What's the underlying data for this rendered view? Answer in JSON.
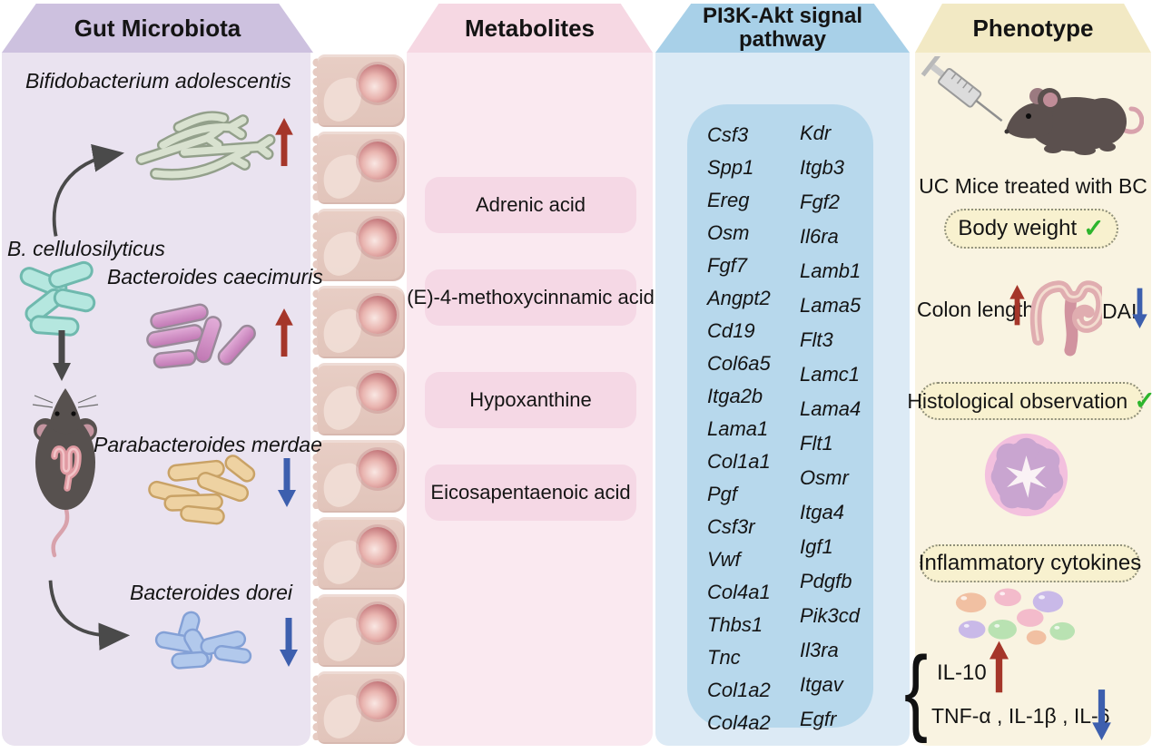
{
  "figure": {
    "gut": {
      "title": "Gut Microbiota",
      "species": [
        {
          "name": "Bifidobacterium adolescentis",
          "trend": "up"
        },
        {
          "name": "B. cellulosilyticus",
          "trend": ""
        },
        {
          "name": "Bacteroides caecimuris",
          "trend": "up"
        },
        {
          "name": "Parabacteroides merdae",
          "trend": "down"
        },
        {
          "name": "Bacteroides dorei",
          "trend": "down"
        }
      ]
    },
    "metabolites": {
      "title": "Metabolites",
      "items": [
        "Adrenic acid",
        "(E)-4-methoxycinnamic acid",
        "Hypoxanthine",
        "Eicosapentaenoic acid"
      ]
    },
    "pi3k": {
      "title_line1": "PI3K-Akt signal",
      "title_line2": "pathway",
      "genes_left": [
        "Csf3",
        "Spp1",
        "Ereg",
        "Osm",
        "Fgf7",
        "Angpt2",
        "Cd19",
        "Col6a5",
        "Itga2b",
        "Lama1",
        "Col1a1",
        "Pgf",
        "Csf3r",
        "Vwf",
        "Col4a1",
        "Thbs1",
        "Tnc",
        "Col1a2",
        "Col4a2"
      ],
      "genes_right": [
        "Kdr",
        "Itgb3",
        "Fgf2",
        "Il6ra",
        "Lamb1",
        "Lama5",
        "Flt3",
        "Lamc1",
        "Lama4",
        "Flt1",
        "Osmr",
        "Itga4",
        "Igf1",
        "Pdgfb",
        "Pik3cd",
        "Il3ra",
        "Itgav",
        "Egfr"
      ]
    },
    "phenotype": {
      "title": "Phenotype",
      "caption": "UC Mice treated with BC",
      "body_weight": "Body weight",
      "check_mark": "✓",
      "colon_length": "Colon length",
      "dai": "DAI",
      "histology": "Histological observation",
      "cytokines": "Inflammatory cytokines",
      "il10": "IL-10",
      "down_group": "TNF-α , IL-1β , IL-6",
      "brace": "{"
    },
    "colors": {
      "up_arrow_red": "#a5362a",
      "down_arrow_blue": "#3d5fae",
      "check_green": "#2db52d",
      "gray_arrow": "#4a4a4a"
    }
  }
}
